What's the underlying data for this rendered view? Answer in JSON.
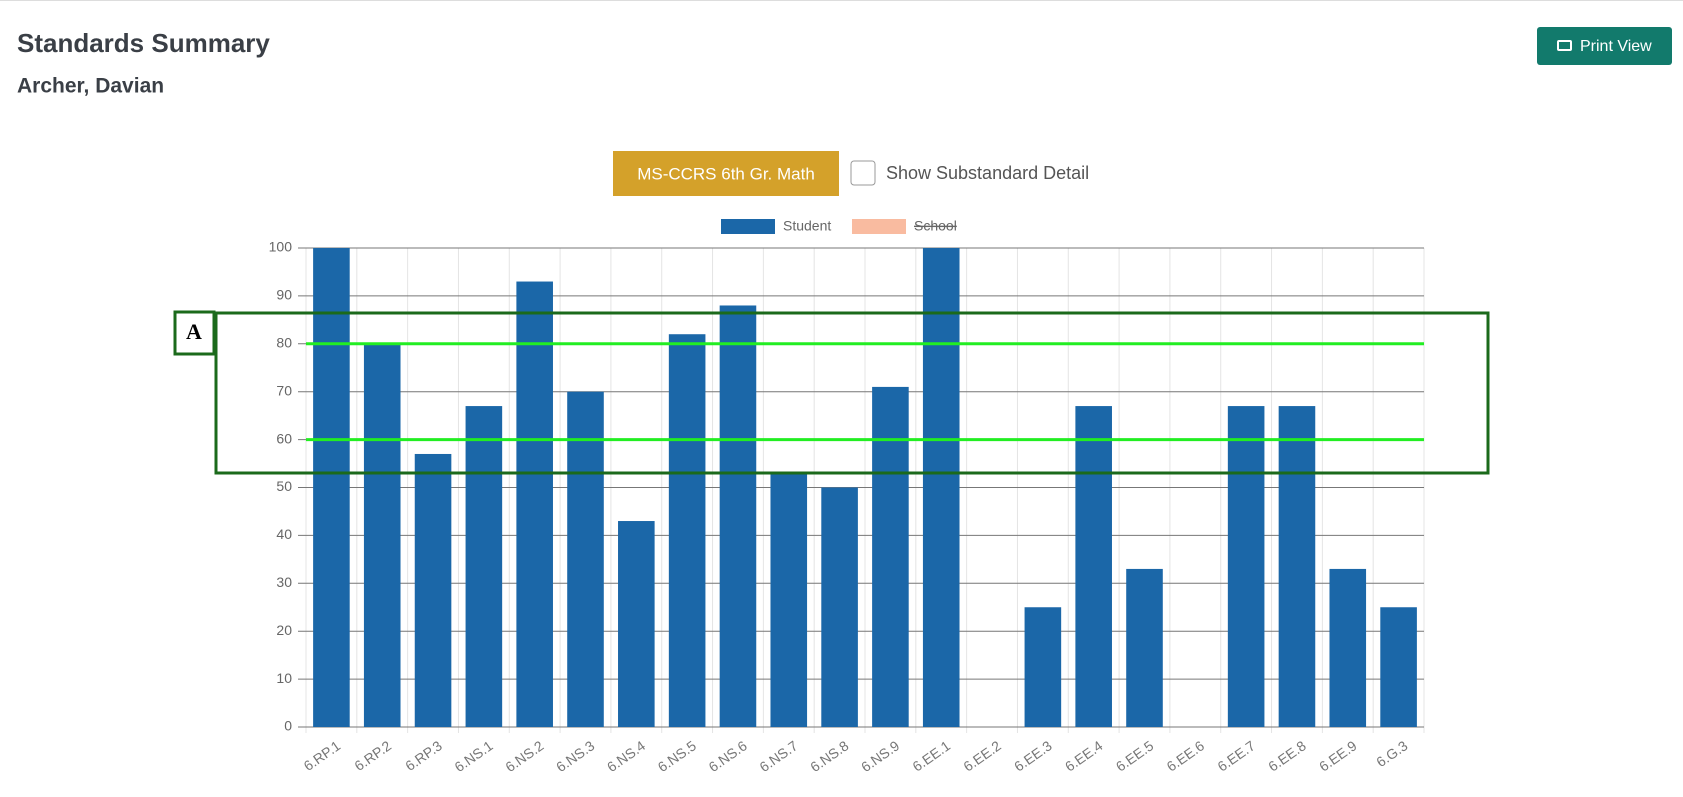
{
  "header": {
    "title": "Standards Summary",
    "subtitle": "Archer, Davian",
    "print_button": "Print View"
  },
  "controls": {
    "standard_button": "MS-CCRS 6th Gr. Math",
    "checkbox_label": "Show Substandard Detail"
  },
  "chart_data": {
    "type": "bar",
    "categories": [
      "6.RP.1",
      "6.RP.2",
      "6.RP.3",
      "6.NS.1",
      "6.NS.2",
      "6.NS.3",
      "6.NS.4",
      "6.NS.5",
      "6.NS.6",
      "6.NS.7",
      "6.NS.8",
      "6.NS.9",
      "6.EE.1",
      "6.EE.2",
      "6.EE.3",
      "6.EE.4",
      "6.EE.5",
      "6.EE.6",
      "6.EE.7",
      "6.EE.8",
      "6.EE.9",
      "6.G.3"
    ],
    "series": [
      {
        "name": "Student",
        "color": "#1b67a8",
        "values": [
          100,
          80,
          57,
          67,
          93,
          70,
          43,
          82,
          88,
          53,
          50,
          71,
          100,
          0,
          25,
          67,
          33,
          0,
          67,
          67,
          33,
          25
        ]
      },
      {
        "name": "School",
        "color": "#f9bba0",
        "hidden": true,
        "values": [
          null,
          null,
          null,
          null,
          null,
          null,
          null,
          null,
          null,
          null,
          null,
          null,
          null,
          null,
          null,
          null,
          null,
          null,
          null,
          null,
          null,
          null
        ]
      }
    ],
    "ylim": [
      0,
      100
    ],
    "yticks": [
      0,
      10,
      20,
      30,
      40,
      50,
      60,
      70,
      80,
      90,
      100
    ],
    "grid": true,
    "reference_lines": [
      80,
      60
    ],
    "reference_color": "#22ee22",
    "annotation": "A"
  }
}
